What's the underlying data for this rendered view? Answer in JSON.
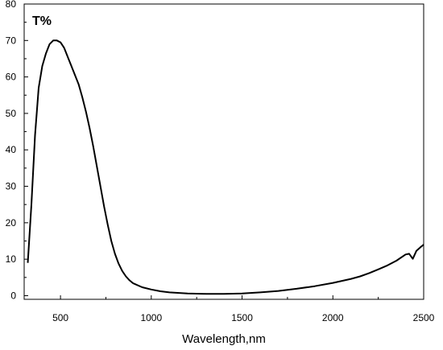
{
  "chart_data": {
    "type": "line",
    "inset_label": "T%",
    "xlabel": "Wavelength,nm",
    "ylabel": "",
    "xlim": [
      300,
      2500
    ],
    "ylim": [
      -1,
      80
    ],
    "x_ticks": [
      500,
      1000,
      1500,
      2000,
      2500
    ],
    "x_tick_labels": [
      "500",
      "1000",
      "1500",
      "2000",
      "2500"
    ],
    "y_ticks": [
      0,
      10,
      20,
      30,
      40,
      50,
      60,
      70,
      80
    ],
    "y_tick_labels": [
      "0",
      "10",
      "20",
      "30",
      "40",
      "50",
      "60",
      "70",
      "80"
    ],
    "grid": false,
    "line_color": "#000000",
    "series": [
      {
        "x": [
          320,
          340,
          360,
          380,
          400,
          420,
          440,
          460,
          480,
          500,
          520,
          540,
          560,
          580,
          600,
          620,
          640,
          660,
          680,
          700,
          720,
          740,
          760,
          780,
          800,
          820,
          840,
          860,
          880,
          900,
          950,
          1000,
          1050,
          1100,
          1200,
          1300,
          1400,
          1500,
          1600,
          1700,
          1800,
          1900,
          2000,
          2100,
          2150,
          2200,
          2250,
          2300,
          2350,
          2400,
          2420,
          2440,
          2460,
          2480,
          2500
        ],
        "y": [
          9,
          25,
          44,
          57,
          63,
          66.5,
          69,
          70,
          70,
          69.5,
          68,
          65.5,
          63,
          60.5,
          58,
          54.5,
          50.5,
          46,
          41,
          35.5,
          30,
          24.5,
          19.5,
          15,
          11.5,
          8.8,
          6.8,
          5.3,
          4.2,
          3.4,
          2.3,
          1.7,
          1.2,
          0.9,
          0.6,
          0.5,
          0.5,
          0.6,
          0.9,
          1.3,
          1.9,
          2.6,
          3.5,
          4.6,
          5.3,
          6.2,
          7.2,
          8.3,
          9.6,
          11.3,
          11.5,
          10.1,
          12.3,
          13.2,
          14
        ]
      }
    ]
  }
}
